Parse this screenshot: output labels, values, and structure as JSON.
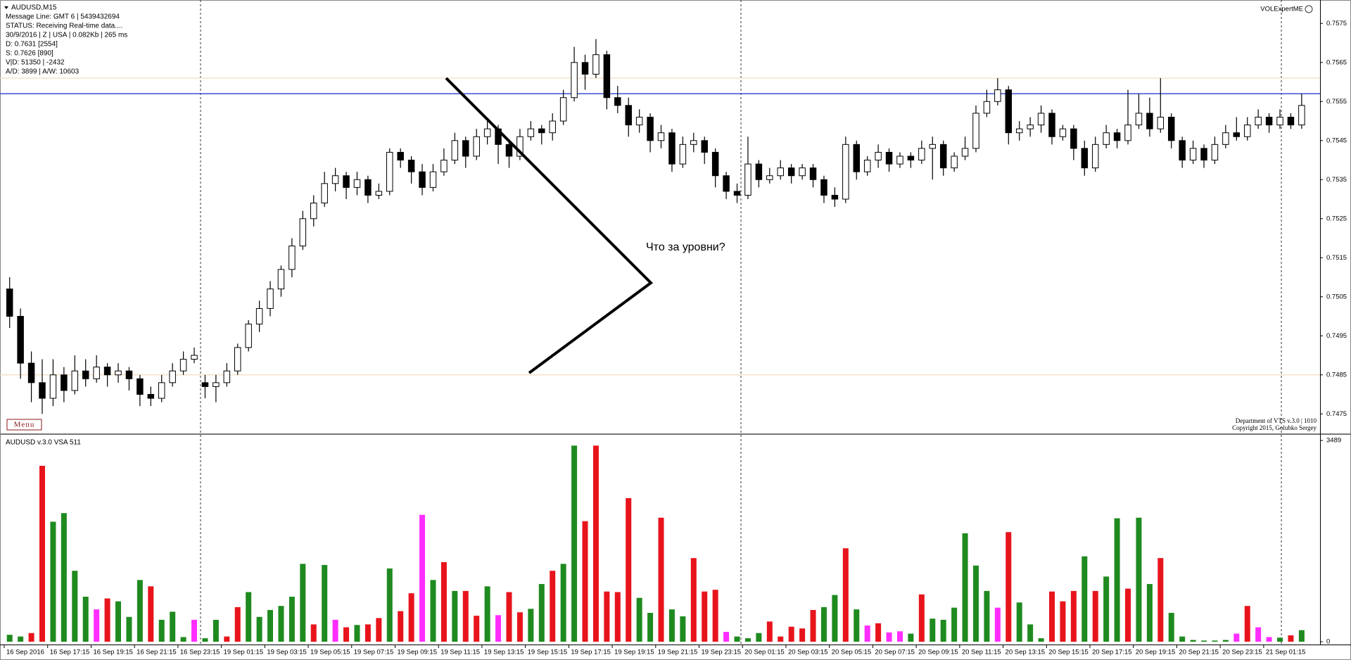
{
  "chart_data": [
    {
      "type": "candlestick",
      "title": "AUDUSD,M15",
      "info": [
        "Message Line: GMT 6 | 5439432694",
        "STATUS:  Receiving Real-time data....",
        "30/9/2016 | Z | USA | 0.082Kb | 265 ms",
        "D: 0.7631  [2554]",
        "S: 0.7626  [890]",
        "V|D: 51350 | -2432",
        "A/D: 3899 | A/W: 10603"
      ],
      "indicator": "VOLExpertME",
      "button": "Menu",
      "footer": [
        "Department of VTS v.3.0 | 1010",
        "Copyright 2015, Golubko Sergey"
      ],
      "annotation": "Что за уровни?",
      "ylim": [
        0.747,
        0.7581
      ],
      "yticks": [
        0.7475,
        0.7485,
        0.7495,
        0.7505,
        0.7515,
        0.7525,
        0.7535,
        0.7545,
        0.7555,
        0.7565,
        0.7575
      ],
      "bull_color": "#ffffff",
      "bear_color": "#000000",
      "hlines": [
        {
          "value": 0.7557,
          "color": "#2b3fcf"
        },
        {
          "value": 0.7561,
          "color": "#f3dcc0"
        },
        {
          "value": 0.7485,
          "color": "#f3dcc0"
        }
      ],
      "candles": [
        [
          0.7507,
          0.751,
          0.7497,
          0.75
        ],
        [
          0.75,
          0.7502,
          0.7484,
          0.7488
        ],
        [
          0.7488,
          0.7491,
          0.7478,
          0.7483
        ],
        [
          0.7483,
          0.7489,
          0.7475,
          0.7479
        ],
        [
          0.7479,
          0.7489,
          0.7477,
          0.7485
        ],
        [
          0.7485,
          0.7487,
          0.7478,
          0.7481
        ],
        [
          0.7481,
          0.749,
          0.748,
          0.7486
        ],
        [
          0.7486,
          0.7489,
          0.7482,
          0.7484
        ],
        [
          0.7484,
          0.749,
          0.7483,
          0.7487
        ],
        [
          0.7487,
          0.7488,
          0.7482,
          0.7485
        ],
        [
          0.7485,
          0.7488,
          0.7483,
          0.7486
        ],
        [
          0.7486,
          0.7487,
          0.7481,
          0.7484
        ],
        [
          0.7484,
          0.7485,
          0.7477,
          0.748
        ],
        [
          0.748,
          0.7482,
          0.7477,
          0.7479
        ],
        [
          0.7479,
          0.7485,
          0.7478,
          0.7483
        ],
        [
          0.7483,
          0.7488,
          0.7482,
          0.7486
        ],
        [
          0.7486,
          0.7491,
          0.7485,
          0.7489
        ],
        [
          0.7489,
          0.7492,
          0.7488,
          0.749
        ],
        [
          0.7483,
          0.7485,
          0.7479,
          0.7482
        ],
        [
          0.7482,
          0.7485,
          0.7478,
          0.7483
        ],
        [
          0.7483,
          0.7488,
          0.7482,
          0.7486
        ],
        [
          0.7486,
          0.7493,
          0.7485,
          0.7492
        ],
        [
          0.7492,
          0.7499,
          0.7491,
          0.7498
        ],
        [
          0.7498,
          0.7504,
          0.7496,
          0.7502
        ],
        [
          0.7502,
          0.7509,
          0.75,
          0.7507
        ],
        [
          0.7507,
          0.7513,
          0.7505,
          0.7512
        ],
        [
          0.7512,
          0.752,
          0.751,
          0.7518
        ],
        [
          0.7518,
          0.7527,
          0.7517,
          0.7525
        ],
        [
          0.7525,
          0.7531,
          0.7523,
          0.7529
        ],
        [
          0.7529,
          0.7537,
          0.7528,
          0.7534
        ],
        [
          0.7534,
          0.7538,
          0.7532,
          0.7536
        ],
        [
          0.7536,
          0.7537,
          0.753,
          0.7533
        ],
        [
          0.7533,
          0.7537,
          0.7531,
          0.7535
        ],
        [
          0.7535,
          0.7536,
          0.7529,
          0.7531
        ],
        [
          0.7531,
          0.7534,
          0.753,
          0.7532
        ],
        [
          0.7532,
          0.7543,
          0.7531,
          0.7542
        ],
        [
          0.7542,
          0.7543,
          0.7538,
          0.754
        ],
        [
          0.754,
          0.7541,
          0.7534,
          0.7537
        ],
        [
          0.7537,
          0.7539,
          0.7531,
          0.7533
        ],
        [
          0.7533,
          0.7539,
          0.7532,
          0.7537
        ],
        [
          0.7537,
          0.7543,
          0.7536,
          0.754
        ],
        [
          0.754,
          0.7547,
          0.7539,
          0.7545
        ],
        [
          0.7545,
          0.7546,
          0.7538,
          0.7541
        ],
        [
          0.7541,
          0.7548,
          0.754,
          0.7546
        ],
        [
          0.7546,
          0.755,
          0.7544,
          0.7548
        ],
        [
          0.7548,
          0.7549,
          0.7539,
          0.7544
        ],
        [
          0.7544,
          0.7545,
          0.7538,
          0.7541
        ],
        [
          0.7541,
          0.7548,
          0.754,
          0.7546
        ],
        [
          0.7546,
          0.755,
          0.7545,
          0.7548
        ],
        [
          0.7548,
          0.7549,
          0.7544,
          0.7547
        ],
        [
          0.7547,
          0.7552,
          0.7545,
          0.755
        ],
        [
          0.755,
          0.7558,
          0.7549,
          0.7556
        ],
        [
          0.7556,
          0.7569,
          0.7555,
          0.7565
        ],
        [
          0.7565,
          0.7567,
          0.7558,
          0.7562
        ],
        [
          0.7562,
          0.7571,
          0.7561,
          0.7567
        ],
        [
          0.7567,
          0.7568,
          0.7553,
          0.7556
        ],
        [
          0.7556,
          0.7559,
          0.7552,
          0.7554
        ],
        [
          0.7554,
          0.7556,
          0.7546,
          0.7549
        ],
        [
          0.7549,
          0.7553,
          0.7547,
          0.7551
        ],
        [
          0.7551,
          0.7552,
          0.7542,
          0.7545
        ],
        [
          0.7545,
          0.7549,
          0.7543,
          0.7547
        ],
        [
          0.7547,
          0.7548,
          0.7537,
          0.7539
        ],
        [
          0.7539,
          0.7546,
          0.7538,
          0.7544
        ],
        [
          0.7544,
          0.7547,
          0.7542,
          0.7545
        ],
        [
          0.7545,
          0.7546,
          0.7539,
          0.7542
        ],
        [
          0.7542,
          0.7543,
          0.7533,
          0.7536
        ],
        [
          0.7536,
          0.7537,
          0.753,
          0.7532
        ],
        [
          0.7532,
          0.7534,
          0.7529,
          0.7531
        ],
        [
          0.7531,
          0.7546,
          0.753,
          0.7539
        ],
        [
          0.7539,
          0.754,
          0.7533,
          0.7535
        ],
        [
          0.7535,
          0.7538,
          0.7534,
          0.7536
        ],
        [
          0.7536,
          0.754,
          0.7535,
          0.7538
        ],
        [
          0.7538,
          0.7539,
          0.7534,
          0.7536
        ],
        [
          0.7536,
          0.7539,
          0.7535,
          0.7538
        ],
        [
          0.7538,
          0.7539,
          0.7533,
          0.7535
        ],
        [
          0.7535,
          0.7536,
          0.7529,
          0.7531
        ],
        [
          0.7531,
          0.7533,
          0.7528,
          0.753
        ],
        [
          0.753,
          0.7546,
          0.7529,
          0.7544
        ],
        [
          0.7544,
          0.7545,
          0.7535,
          0.7537
        ],
        [
          0.7537,
          0.7541,
          0.7536,
          0.754
        ],
        [
          0.754,
          0.7544,
          0.7538,
          0.7542
        ],
        [
          0.7542,
          0.7543,
          0.7537,
          0.7539
        ],
        [
          0.7539,
          0.7542,
          0.7538,
          0.7541
        ],
        [
          0.7541,
          0.7542,
          0.7538,
          0.754
        ],
        [
          0.754,
          0.7545,
          0.7539,
          0.7543
        ],
        [
          0.7543,
          0.7546,
          0.7535,
          0.7544
        ],
        [
          0.7544,
          0.7545,
          0.7536,
          0.7538
        ],
        [
          0.7538,
          0.7542,
          0.7537,
          0.7541
        ],
        [
          0.7541,
          0.7546,
          0.754,
          0.7543
        ],
        [
          0.7543,
          0.7554,
          0.7542,
          0.7552
        ],
        [
          0.7552,
          0.7558,
          0.7551,
          0.7555
        ],
        [
          0.7555,
          0.7561,
          0.7554,
          0.7558
        ],
        [
          0.7558,
          0.7559,
          0.7544,
          0.7547
        ],
        [
          0.7547,
          0.755,
          0.7545,
          0.7548
        ],
        [
          0.7548,
          0.7551,
          0.7546,
          0.7549
        ],
        [
          0.7549,
          0.7554,
          0.7547,
          0.7552
        ],
        [
          0.7552,
          0.7553,
          0.7544,
          0.7546
        ],
        [
          0.7546,
          0.7549,
          0.7545,
          0.7548
        ],
        [
          0.7548,
          0.7549,
          0.754,
          0.7543
        ],
        [
          0.7543,
          0.7545,
          0.7536,
          0.7538
        ],
        [
          0.7538,
          0.7546,
          0.7537,
          0.7544
        ],
        [
          0.7544,
          0.7549,
          0.7543,
          0.7547
        ],
        [
          0.7547,
          0.7548,
          0.7543,
          0.7545
        ],
        [
          0.7545,
          0.7558,
          0.7544,
          0.7549
        ],
        [
          0.7549,
          0.7557,
          0.7548,
          0.7552
        ],
        [
          0.7552,
          0.7556,
          0.7546,
          0.7548
        ],
        [
          0.7548,
          0.7561,
          0.7547,
          0.7551
        ],
        [
          0.7551,
          0.7552,
          0.7543,
          0.7545
        ],
        [
          0.7545,
          0.7546,
          0.7538,
          0.754
        ],
        [
          0.754,
          0.7545,
          0.7539,
          0.7543
        ],
        [
          0.7543,
          0.7544,
          0.7538,
          0.754
        ],
        [
          0.754,
          0.7546,
          0.7539,
          0.7544
        ],
        [
          0.7544,
          0.7549,
          0.7543,
          0.7547
        ],
        [
          0.7547,
          0.7551,
          0.7545,
          0.7546
        ],
        [
          0.7546,
          0.7551,
          0.7545,
          0.7549
        ],
        [
          0.7549,
          0.7553,
          0.7548,
          0.7551
        ],
        [
          0.7551,
          0.7552,
          0.7547,
          0.7549
        ],
        [
          0.7549,
          0.7553,
          0.7548,
          0.7551
        ],
        [
          0.7551,
          0.7552,
          0.7548,
          0.7549
        ],
        [
          0.7549,
          0.7557,
          0.7548,
          0.7554
        ]
      ]
    },
    {
      "type": "bar",
      "title": "AUDUSD  v.3.0 VSA 511",
      "ylim": [
        0,
        3489
      ],
      "yticks": [
        0,
        3489
      ],
      "categories": [
        "16 Sep 2016",
        null,
        null,
        null,
        "16 Sep 17:15",
        null,
        null,
        null,
        "16 Sep 19:15",
        null,
        null,
        null,
        "16 Sep 21:15",
        null,
        null,
        null,
        "16 Sep 23:15",
        null,
        null,
        null,
        "19 Sep 01:15",
        null,
        null,
        null,
        "19 Sep 03:15",
        null,
        null,
        null,
        "19 Sep 05:15",
        null,
        null,
        null,
        "19 Sep 07:15",
        null,
        null,
        null,
        "19 Sep 09:15",
        null,
        null,
        null,
        "19 Sep 11:15",
        null,
        null,
        null,
        "19 Sep 13:15",
        null,
        null,
        null,
        "19 Sep 15:15",
        null,
        null,
        null,
        "19 Sep 17:15",
        null,
        null,
        null,
        "19 Sep 19:15",
        null,
        null,
        null,
        "19 Sep 21:15",
        null,
        null,
        null,
        "19 Sep 23:15",
        null,
        null,
        null,
        "20 Sep 01:15",
        null,
        null,
        null,
        "20 Sep 03:15",
        null,
        null,
        null,
        "20 Sep 05:15",
        null,
        null,
        null,
        "20 Sep 07:15",
        null,
        null,
        null,
        "20 Sep 09:15",
        null,
        null,
        null,
        "20 Sep 11:15",
        null,
        null,
        null,
        "20 Sep 13:15",
        null,
        null,
        null,
        "20 Sep 15:15",
        null,
        null,
        null,
        "20 Sep 17:15",
        null,
        null,
        null,
        "20 Sep 19:15",
        null,
        null,
        null,
        "20 Sep 21:15",
        null,
        null,
        null,
        "20 Sep 23:15",
        null,
        null,
        null,
        "21 Sep 01:15",
        null,
        null,
        null
      ],
      "values": [
        120,
        90,
        150,
        3050,
        2080,
        2230,
        1230,
        780,
        560,
        750,
        700,
        430,
        1070,
        960,
        380,
        520,
        80,
        380,
        60,
        380,
        90,
        600,
        860,
        430,
        550,
        620,
        780,
        1350,
        300,
        1330,
        380,
        250,
        290,
        300,
        410,
        1270,
        530,
        840,
        2200,
        1070,
        1380,
        880,
        880,
        450,
        960,
        460,
        860,
        510,
        570,
        1000,
        1230,
        1350,
        3400,
        2090,
        3400,
        870,
        860,
        2490,
        760,
        500,
        2150,
        560,
        440,
        1450,
        870,
        900,
        170,
        90,
        60,
        150,
        350,
        90,
        260,
        230,
        550,
        600,
        810,
        1620,
        560,
        280,
        320,
        160,
        180,
        140,
        820,
        400,
        380,
        590,
        1880,
        1320,
        880,
        590,
        1900,
        680,
        300,
        60,
        870,
        700,
        880,
        1480,
        880,
        1130,
        2140,
        920,
        2150,
        1000,
        1450,
        500,
        90,
        30,
        20,
        20,
        30,
        140,
        620,
        250,
        80,
        70,
        110,
        200
      ],
      "colors": [
        "#1f8a1f",
        "#1f8a1f",
        "#e8141c",
        "#e8141c",
        "#1f8a1f",
        "#1f8a1f",
        "#1f8a1f",
        "#1f8a1f",
        "#ff2dff",
        "#e8141c",
        "#1f8a1f",
        "#1f8a1f",
        "#1f8a1f",
        "#e8141c",
        "#1f8a1f",
        "#1f8a1f",
        "#1f8a1f",
        "#ff2dff",
        "#1f8a1f",
        "#1f8a1f",
        "#e8141c",
        "#e8141c",
        "#1f8a1f",
        "#1f8a1f",
        "#1f8a1f",
        "#1f8a1f",
        "#1f8a1f",
        "#1f8a1f",
        "#e8141c",
        "#1f8a1f",
        "#ff2dff",
        "#e8141c",
        "#1f8a1f",
        "#e8141c",
        "#e8141c",
        "#1f8a1f",
        "#e8141c",
        "#e8141c",
        "#ff2dff",
        "#1f8a1f",
        "#e8141c",
        "#1f8a1f",
        "#e8141c",
        "#e8141c",
        "#1f8a1f",
        "#ff2dff",
        "#e8141c",
        "#e8141c",
        "#1f8a1f",
        "#1f8a1f",
        "#e8141c",
        "#1f8a1f",
        "#1f8a1f",
        "#e8141c",
        "#e8141c",
        "#e8141c",
        "#e8141c",
        "#e8141c",
        "#1f8a1f",
        "#1f8a1f",
        "#e8141c",
        "#1f8a1f",
        "#1f8a1f",
        "#e8141c",
        "#e8141c",
        "#e8141c",
        "#ff2dff",
        "#1f8a1f",
        "#1f8a1f",
        "#1f8a1f",
        "#e8141c",
        "#e8141c",
        "#e8141c",
        "#e8141c",
        "#e8141c",
        "#1f8a1f",
        "#1f8a1f",
        "#e8141c",
        "#1f8a1f",
        "#ff2dff",
        "#e8141c",
        "#ff2dff",
        "#ff2dff",
        "#1f8a1f",
        "#e8141c",
        "#1f8a1f",
        "#1f8a1f",
        "#1f8a1f",
        "#1f8a1f",
        "#1f8a1f",
        "#1f8a1f",
        "#ff2dff",
        "#e8141c",
        "#1f8a1f",
        "#1f8a1f",
        "#1f8a1f",
        "#e8141c",
        "#e8141c",
        "#e8141c",
        "#1f8a1f",
        "#e8141c",
        "#1f8a1f",
        "#1f8a1f",
        "#e8141c",
        "#1f8a1f",
        "#1f8a1f",
        "#e8141c",
        "#1f8a1f",
        "#1f8a1f",
        "#1f8a1f",
        "#1f8a1f",
        "#1f8a1f",
        "#1f8a1f",
        "#ff2dff",
        "#e8141c",
        "#ff2dff",
        "#ff2dff",
        "#1f8a1f",
        "#e8141c",
        "#1f8a1f"
      ]
    }
  ]
}
